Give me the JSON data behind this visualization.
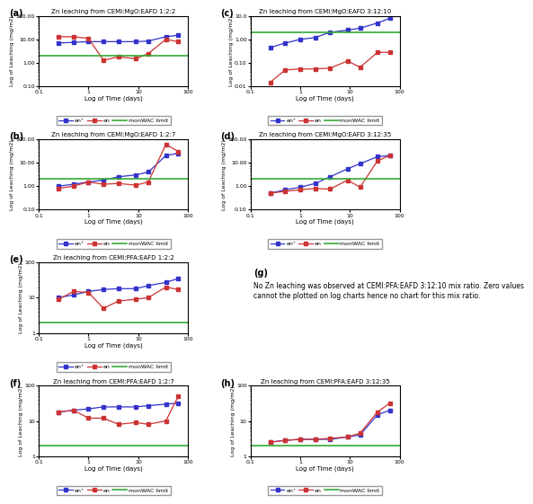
{
  "panels": [
    {
      "label": "(a)",
      "title": "Zn leaching from CEMI:MgO:EAFD 1:2:2",
      "en_plus_x": [
        0.25,
        0.5,
        1.0,
        2.0,
        4.0,
        9.0,
        16.0,
        36.0,
        64.0
      ],
      "en_plus_y": [
        7.0,
        7.5,
        8.0,
        8.0,
        8.0,
        8.0,
        8.5,
        13.0,
        15.0
      ],
      "en_x": [
        0.25,
        0.5,
        1.0,
        2.0,
        4.0,
        9.0,
        16.0,
        36.0,
        64.0
      ],
      "en_y": [
        13.0,
        13.0,
        11.0,
        1.3,
        1.8,
        1.5,
        2.5,
        10.0,
        8.0
      ],
      "monWAC": 2.0,
      "ylim": [
        0.1,
        100.0
      ],
      "yticks": [
        0.1,
        1.0,
        10.0,
        100.0
      ],
      "yticklabels": [
        "0.10",
        "1.00",
        "10.00",
        "100.00"
      ],
      "col": 0,
      "row": 0
    },
    {
      "label": "(b)",
      "title": "Zn leaching from CEMI:MgO:EAFD 1:2:7",
      "en_plus_x": [
        0.25,
        0.5,
        1.0,
        2.0,
        4.0,
        9.0,
        16.0,
        36.0,
        64.0
      ],
      "en_plus_y": [
        1.0,
        1.2,
        1.5,
        1.8,
        2.5,
        3.0,
        4.0,
        20.0,
        25.0
      ],
      "en_x": [
        0.25,
        0.5,
        1.0,
        2.0,
        4.0,
        9.0,
        16.0,
        36.0,
        64.0
      ],
      "en_y": [
        0.8,
        1.0,
        1.5,
        1.2,
        1.3,
        1.1,
        1.5,
        60.0,
        30.0
      ],
      "monWAC": 2.0,
      "ylim": [
        0.1,
        100.0
      ],
      "yticks": [
        0.1,
        1.0,
        10.0,
        100.0
      ],
      "yticklabels": [
        "0.10",
        "1.00",
        "10.00",
        "100.00"
      ],
      "col": 0,
      "row": 1
    },
    {
      "label": "(c)",
      "title": "Zn leaching from CEMI:MgO:EAFD 3:12:10",
      "en_plus_x": [
        0.25,
        0.5,
        1.0,
        2.0,
        4.0,
        9.0,
        16.0,
        36.0,
        64.0
      ],
      "en_plus_y": [
        0.45,
        0.7,
        1.0,
        1.2,
        2.0,
        2.5,
        3.0,
        5.0,
        8.0
      ],
      "en_x": [
        0.25,
        0.5,
        1.0,
        2.0,
        4.0,
        9.0,
        16.0,
        36.0,
        64.0
      ],
      "en_y": [
        0.015,
        0.05,
        0.055,
        0.055,
        0.06,
        0.12,
        0.065,
        0.28,
        0.28
      ],
      "monWAC": 2.0,
      "ylim": [
        0.01,
        10.0
      ],
      "yticks": [
        0.01,
        0.1,
        1.0,
        10.0
      ],
      "yticklabels": [
        "0.01",
        "0.10",
        "1.00",
        "10.0"
      ],
      "col": 1,
      "row": 0
    },
    {
      "label": "(d)",
      "title": "Zn leaching from CEMI:MgO:EAFD 3:12:35",
      "en_plus_x": [
        0.25,
        0.5,
        1.0,
        2.0,
        4.0,
        9.0,
        16.0,
        36.0,
        64.0
      ],
      "en_plus_y": [
        0.5,
        0.7,
        0.9,
        1.3,
        2.5,
        5.5,
        9.0,
        18.0,
        20.0
      ],
      "en_x": [
        0.25,
        0.5,
        1.0,
        2.0,
        4.0,
        9.0,
        16.0,
        36.0,
        64.0
      ],
      "en_y": [
        0.5,
        0.6,
        0.7,
        0.8,
        0.75,
        1.8,
        0.9,
        12.0,
        20.0
      ],
      "monWAC": 2.0,
      "ylim": [
        0.1,
        100.0
      ],
      "yticks": [
        0.1,
        1.0,
        10.0,
        100.0
      ],
      "yticklabels": [
        "0.10",
        "1.00",
        "10.00",
        "100.00"
      ],
      "col": 1,
      "row": 1
    },
    {
      "label": "(e)",
      "title": "Zn leaching from CEMI:PFA:EAFD 1:2:2",
      "en_plus_x": [
        0.25,
        0.5,
        1.0,
        2.0,
        4.0,
        9.0,
        16.0,
        36.0,
        64.0
      ],
      "en_plus_y": [
        10.0,
        12.0,
        15.0,
        17.0,
        18.0,
        18.0,
        22.0,
        27.0,
        35.0
      ],
      "en_x": [
        0.25,
        0.5,
        1.0,
        2.0,
        4.0,
        9.0,
        16.0,
        36.0,
        64.0
      ],
      "en_y": [
        9.0,
        15.0,
        14.0,
        5.0,
        8.0,
        9.0,
        10.0,
        20.0,
        17.0
      ],
      "monWAC": 2.0,
      "ylim": [
        1.0,
        100.0
      ],
      "yticks": [
        1.0,
        10.0,
        100.0
      ],
      "yticklabels": [
        "1",
        "10",
        "100"
      ],
      "col": 0,
      "row": 2
    },
    {
      "label": "(f)",
      "title": "Zn leaching from CEMI:PFA:EAFD 1:2:7",
      "en_plus_x": [
        0.25,
        0.5,
        1.0,
        2.0,
        4.0,
        9.0,
        16.0,
        36.0,
        64.0
      ],
      "en_plus_y": [
        18.0,
        20.0,
        22.0,
        25.0,
        25.0,
        25.0,
        27.0,
        30.0,
        32.0
      ],
      "en_x": [
        0.25,
        0.5,
        1.0,
        2.0,
        4.0,
        9.0,
        16.0,
        36.0,
        64.0
      ],
      "en_y": [
        18.0,
        20.0,
        12.0,
        12.0,
        8.0,
        9.0,
        8.0,
        10.0,
        50.0
      ],
      "monWAC": 2.0,
      "ylim": [
        1.0,
        100.0
      ],
      "yticks": [
        1.0,
        10.0,
        100.0
      ],
      "yticklabels": [
        "1",
        "10",
        "100"
      ],
      "col": 0,
      "row": 3
    },
    {
      "label": "(g)",
      "title": "No Zn leaching was observed at CEMI:PFA:EAFD 3:12:10 mix ratio. Zero values\ncannot the plotted on log charts hence no chart for this mix ratio.",
      "special": true,
      "col": 1,
      "row": 2
    },
    {
      "label": "(h)",
      "title": "Zn leaching from CEMI:PFA:EAFD 3:12:35",
      "en_plus_x": [
        0.25,
        0.5,
        1.0,
        2.0,
        4.0,
        9.0,
        16.0,
        36.0,
        64.0
      ],
      "en_plus_y": [
        2.5,
        2.8,
        3.0,
        3.0,
        3.0,
        3.5,
        4.0,
        15.0,
        20.0
      ],
      "en_x": [
        0.25,
        0.5,
        1.0,
        2.0,
        4.0,
        9.0,
        16.0,
        36.0,
        64.0
      ],
      "en_y": [
        2.5,
        2.8,
        3.0,
        3.0,
        3.2,
        3.5,
        4.5,
        18.0,
        32.0
      ],
      "monWAC": 2.0,
      "ylim": [
        1.0,
        100.0
      ],
      "yticks": [
        1.0,
        10.0,
        100.0
      ],
      "yticklabels": [
        "1",
        "10",
        "100"
      ],
      "col": 1,
      "row": 3
    }
  ],
  "en_plus_color": "#3333cc",
  "en_color": "#cc3333",
  "monWAC_color": "#33aa33",
  "legend_labels": [
    "en⁺",
    "en",
    "monWAC limit"
  ],
  "xlabel": "Log of Time (days)",
  "ylabel": "Log of Leaching (mg/m2)"
}
